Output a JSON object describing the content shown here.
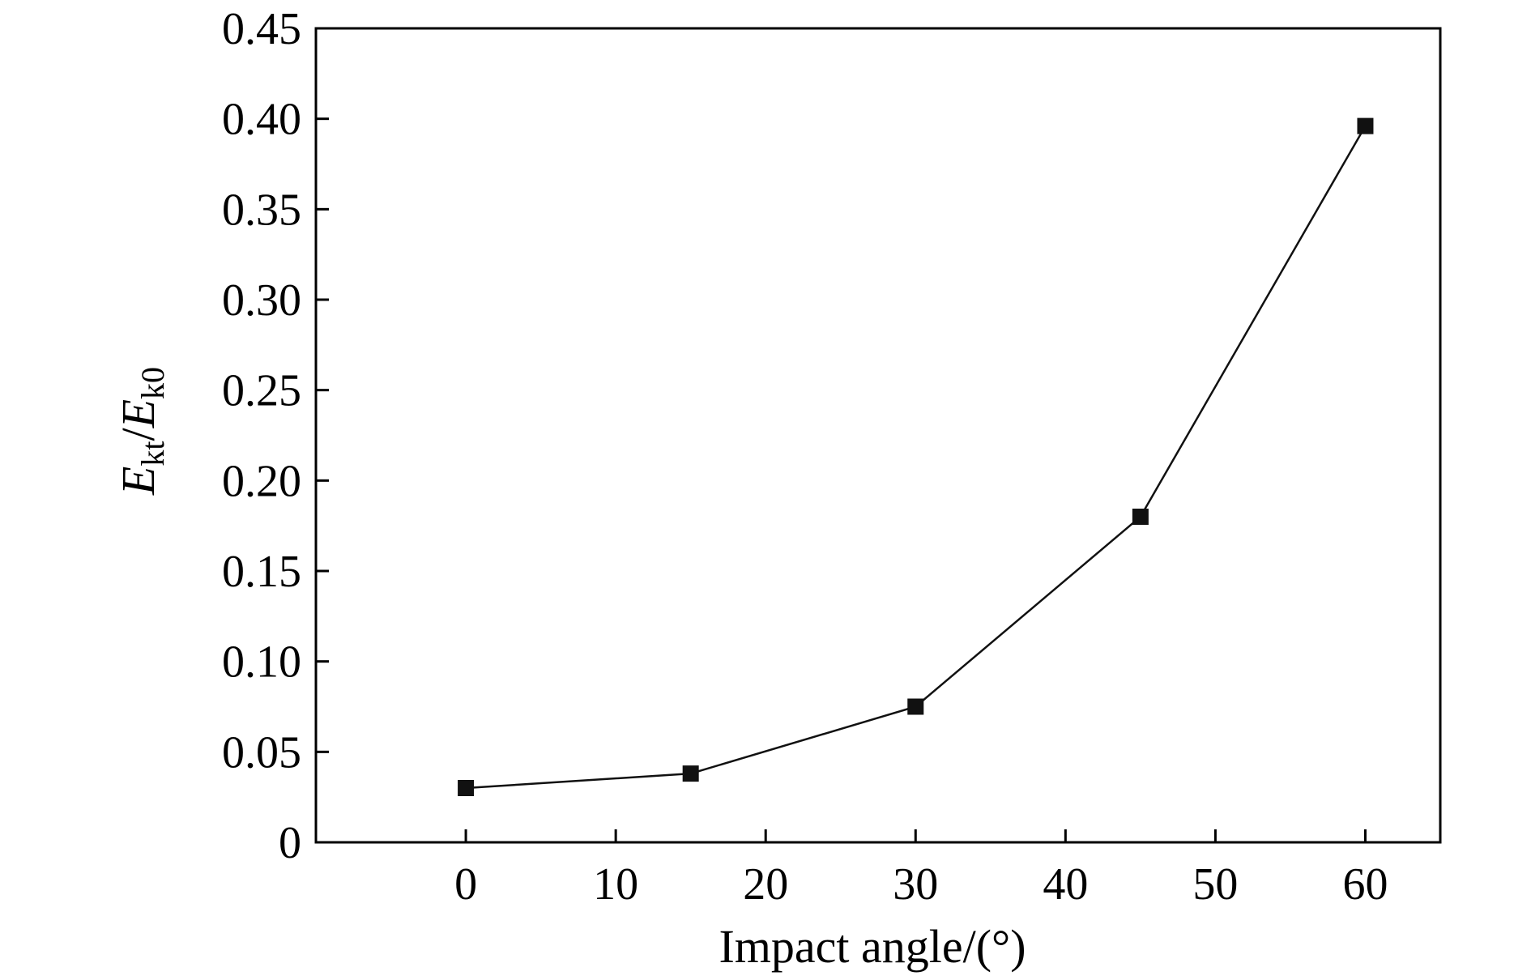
{
  "chart_data": {
    "type": "line",
    "title": "",
    "xlabel": "Impact angle/(°)",
    "ylabel": {
      "numerator_symbol": "E",
      "numerator_subscript": "kt",
      "separator": "/",
      "denominator_symbol": "E",
      "denominator_subscript": "k0"
    },
    "xlim": [
      -10,
      65
    ],
    "ylim": [
      0,
      0.45
    ],
    "xticks": [
      0,
      10,
      20,
      30,
      40,
      50,
      60
    ],
    "yticks": [
      0,
      0.05,
      0.1,
      0.15,
      0.2,
      0.25,
      0.3,
      0.35,
      0.4,
      0.45
    ],
    "xtick_labels": [
      "0",
      "10",
      "20",
      "30",
      "40",
      "50",
      "60"
    ],
    "ytick_labels": [
      "0",
      "0.05",
      "0.10",
      "0.15",
      "0.20",
      "0.25",
      "0.30",
      "0.35",
      "0.40",
      "0.45"
    ],
    "grid": false,
    "legend": "none",
    "series": [
      {
        "marker": "square",
        "color": "#111111",
        "x": [
          0,
          15,
          30,
          45,
          60
        ],
        "y": [
          0.03,
          0.038,
          0.075,
          0.18,
          0.396
        ]
      }
    ]
  }
}
